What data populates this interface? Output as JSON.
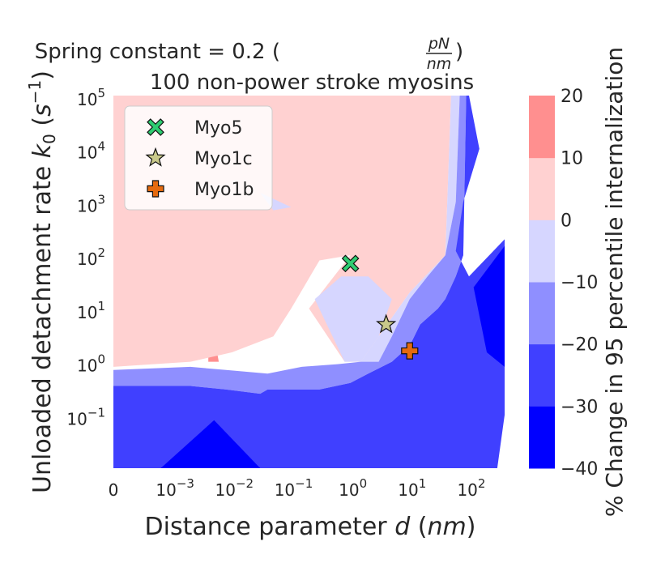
{
  "chart_data": {
    "type": "heatmap",
    "title_line1_prefix": "Spring constant = 0.2 (",
    "title_unit_num": "pN",
    "title_unit_den": "nm",
    "title_line1_suffix": ")",
    "title_line2": "100 non-power stroke myosins",
    "xlabel_prefix": "Distance parameter ",
    "xlabel_var": "d",
    "xlabel_unit": "nm",
    "ylabel_prefix": "Unloaded detachment rate ",
    "ylabel_var": "k",
    "ylabel_sub": "0",
    "ylabel_unit": "s",
    "ylabel_unit_exp": "−1",
    "xscale": "symlog",
    "yscale": "log",
    "xlim": [
      0,
      400
    ],
    "ylim": [
      0.01,
      100000
    ],
    "xticks": [
      {
        "value": 0,
        "base": "0",
        "exp": ""
      },
      {
        "value": 0.001,
        "base": "10",
        "exp": "−3"
      },
      {
        "value": 0.01,
        "base": "10",
        "exp": "−2"
      },
      {
        "value": 0.1,
        "base": "10",
        "exp": "−1"
      },
      {
        "value": 1,
        "base": "10",
        "exp": "0"
      },
      {
        "value": 10,
        "base": "10",
        "exp": "1"
      },
      {
        "value": 100,
        "base": "10",
        "exp": "2"
      }
    ],
    "yticks": [
      {
        "value": 0.1,
        "base": "10",
        "exp": "−1"
      },
      {
        "value": 1,
        "base": "10",
        "exp": "0"
      },
      {
        "value": 10,
        "base": "10",
        "exp": "1"
      },
      {
        "value": 100,
        "base": "10",
        "exp": "2"
      },
      {
        "value": 1000,
        "base": "10",
        "exp": "3"
      },
      {
        "value": 10000,
        "base": "10",
        "exp": "4"
      },
      {
        "value": 100000,
        "base": "10",
        "exp": "5"
      }
    ],
    "colorbar": {
      "label": "% Change in 95 percentile internalization",
      "levels": [
        -40,
        -30,
        -20,
        -10,
        0,
        10,
        20
      ],
      "tick_labels": [
        "−40",
        "−30",
        "−20",
        "−10",
        "0",
        "10",
        "20"
      ],
      "colors": [
        "#0000ff",
        "#4040ff",
        "#8f8fff",
        "#d6d6ff",
        "#ffd1d1",
        "#ff8f8f"
      ]
    },
    "regions": [
      {
        "name": "above 10%",
        "level": 5,
        "polygons": [
          [
            [
              0,
              20000.0
            ],
            [
              0.003,
              3000.0
            ],
            [
              0.003,
              200
            ],
            [
              0,
              500
            ]
          ],
          [
            [
              0.12,
              100000.0
            ],
            [
              0.45,
              100000.0
            ],
            [
              3,
              100000.0
            ],
            [
              3,
              3000
            ],
            [
              8,
              1000
            ],
            [
              8,
              120
            ],
            [
              6,
              100
            ],
            [
              1,
              100
            ],
            [
              0.7,
              150
            ],
            [
              0.12,
              10000.0
            ]
          ],
          [
            [
              0.004,
              3
            ],
            [
              0.005,
              3
            ],
            [
              0.006,
              1
            ],
            [
              0.004,
              1
            ]
          ]
        ]
      },
      {
        "name": "0 to 10%",
        "level": 4,
        "polygons": [
          [
            [
              0,
              100000.0
            ],
            [
              0.45,
              100000.0
            ],
            [
              3,
              100000.0
            ],
            [
              50,
              100000.0
            ],
            [
              40,
              100
            ],
            [
              10,
              20
            ],
            [
              3,
              3
            ],
            [
              1.5,
              1
            ],
            [
              0.8,
              1
            ],
            [
              0.2,
              10
            ],
            [
              1,
              100
            ],
            [
              0.3,
              80
            ],
            [
              0.1,
              10
            ],
            [
              0.05,
              3
            ],
            [
              0.01,
              1.5
            ],
            [
              0.002,
              1
            ],
            [
              0,
              0.8
            ]
          ]
        ]
      },
      {
        "name": "-10 to 0%",
        "level": 3,
        "polygons": [
          [
            [
              50,
              100000.0
            ],
            [
              70,
              100000.0
            ],
            [
              60,
              1000
            ],
            [
              40,
              100
            ],
            [
              20,
              40
            ],
            [
              10,
              15
            ],
            [
              5,
              3
            ],
            [
              3,
              1
            ],
            [
              1.5,
              1
            ],
            [
              3,
              3
            ],
            [
              10,
              20
            ],
            [
              40,
              100
            ]
          ],
          [
            [
              0.25,
              15
            ],
            [
              0.7,
              40
            ],
            [
              2,
              40
            ],
            [
              5,
              15
            ],
            [
              3,
              3
            ],
            [
              1.5,
              1
            ],
            [
              0.8,
              1
            ],
            [
              0.4,
              5
            ]
          ],
          [
            [
              0.03,
              1500
            ],
            [
              0.1,
              800
            ],
            [
              0.05,
              700
            ]
          ]
        ]
      },
      {
        "name": "-20 to -10%",
        "level": 2,
        "polygons": [
          [
            [
              0,
              0.7
            ],
            [
              0.002,
              0.8
            ],
            [
              0.008,
              0.7
            ],
            [
              0.04,
              0.6
            ],
            [
              0.15,
              0.8
            ],
            [
              0.6,
              0.9
            ],
            [
              1.5,
              1
            ],
            [
              3,
              1
            ],
            [
              5,
              3
            ],
            [
              10,
              15
            ],
            [
              20,
              40
            ],
            [
              40,
              100
            ],
            [
              60,
              1000
            ],
            [
              70,
              100000.0
            ],
            [
              90,
              100000.0
            ],
            [
              80,
              100
            ],
            [
              60,
              40
            ],
            [
              40,
              15
            ],
            [
              30,
              10
            ],
            [
              15,
              5
            ],
            [
              10,
              2
            ],
            [
              5,
              1
            ],
            [
              2,
              0.6
            ],
            [
              1,
              0.4
            ],
            [
              0.3,
              0.3
            ],
            [
              0.04,
              0.3
            ],
            [
              0.03,
              0.25
            ],
            [
              0.008,
              0.3
            ],
            [
              0.002,
              0.35
            ],
            [
              0,
              0.35
            ]
          ]
        ]
      },
      {
        "name": "-30 to -20%",
        "level": 1,
        "polygons": [
          [
            [
              0,
              0.35
            ],
            [
              0.002,
              0.35
            ],
            [
              0.008,
              0.3
            ],
            [
              0.03,
              0.25
            ],
            [
              0.04,
              0.3
            ],
            [
              0.3,
              0.3
            ],
            [
              1,
              0.4
            ],
            [
              2,
              0.6
            ],
            [
              5,
              1
            ],
            [
              10,
              2
            ],
            [
              15,
              5
            ],
            [
              30,
              10
            ],
            [
              40,
              15
            ],
            [
              60,
              40
            ],
            [
              80,
              100
            ],
            [
              90,
              100000.0
            ],
            [
              100,
              100000.0
            ],
            [
              150,
              10000.0
            ],
            [
              80,
              1000
            ],
            [
              60,
              120
            ],
            [
              100,
              40
            ],
            [
              400,
              200
            ],
            [
              400,
              0.1
            ],
            [
              300,
              0.01
            ],
            [
              0,
              0.01
            ]
          ]
        ]
      },
      {
        "name": "-40 to -30%",
        "level": 0,
        "polygons": [
          [
            [
              0.0008,
              0.01
            ],
            [
              0.005,
              0.08
            ],
            [
              0.03,
              0.01
            ]
          ],
          [
            [
              120,
              25
            ],
            [
              400,
              150
            ],
            [
              400,
              0.8
            ],
            [
              200,
              1.5
            ]
          ]
        ]
      }
    ],
    "points": [
      {
        "label": "Myo5",
        "x": 1,
        "y": 70,
        "marker": "X",
        "color": "#2ecc71"
      },
      {
        "label": "Myo1c",
        "x": 4,
        "y": 5,
        "marker": "star",
        "color": "#c9c98a"
      },
      {
        "label": "Myo1b",
        "x": 10,
        "y": 1.6,
        "marker": "plus",
        "color": "#e46a0f"
      }
    ],
    "legend_position": "upper left",
    "grid": false
  }
}
